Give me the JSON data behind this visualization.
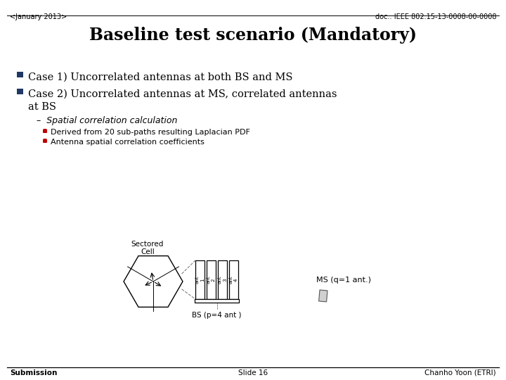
{
  "header_left": "<January 2013>",
  "header_right": "doc.: IEEE 802.15-13-0008-00-0008",
  "title": "Baseline test scenario (Mandatory)",
  "bullet1": "Case 1) Uncorrelated antennas at both BS and MS",
  "bullet2_line1": "Case 2) Uncorrelated antennas at MS, correlated antennas",
  "bullet2_line2": "at BS",
  "sub_bullet": "–  Spatial correlation calculation",
  "dot1": "Derived from 20 sub-paths resulting Laplacian PDF",
  "dot2": "Antenna spatial correlation coefficients",
  "footer_left": "Submission",
  "footer_center": "Slide 16",
  "footer_right": "Chanho Yoon (ETRI)",
  "label_sectored": "Sectored",
  "label_cell": "Cell",
  "label_bs": "BS (p=4 ant )",
  "label_ms": "MS (q=1 ant.)",
  "bg_color": "#ffffff",
  "text_color": "#000000",
  "bullet_color": "#1f3864",
  "dot_color": "#c00000",
  "line_color": "#000000"
}
